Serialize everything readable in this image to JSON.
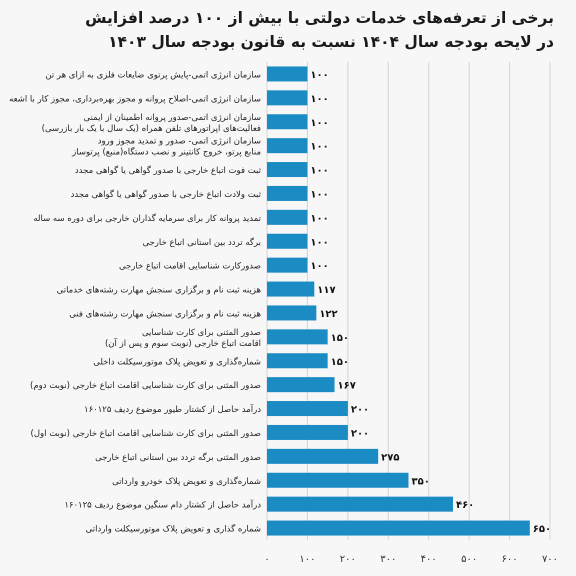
{
  "chart_data": {
    "type": "bar",
    "orientation": "horizontal",
    "title": "برخی از تعرفه‌های خدمات دولتی با بیش از ۱۰۰ درصد افزایش",
    "subtitle": "در لایحه بودجه سال ۱۴۰۴ نسبت به قانون بودجه سال ۱۴۰۳",
    "xlabel": "",
    "ylabel": "",
    "xlim": [
      0,
      700
    ],
    "grid": "vertical",
    "color": "#1b8bc4",
    "tick_values": [
      0,
      100,
      200,
      300,
      400,
      500,
      600,
      700
    ],
    "tick_labels": [
      "۰",
      "۱۰۰",
      "۲۰۰",
      "۳۰۰",
      "۴۰۰",
      "۵۰۰",
      "۶۰۰",
      "۷۰۰"
    ],
    "categories": [
      [
        "سازمان انرژی اتمی-پایش پرتوی ضایعات فلزی به ازای هر تن"
      ],
      [
        "سازمان انرژی اتمی-اصلاح پروانه و مجوز بهره‌برداری، مجوز کار با اشعه"
      ],
      [
        "سازمان انرژی اتمی-صدور پروانه اطمینان از ایمنی",
        "فعالیت‌های اپراتورهای تلفن همراه (یک سال با یک بار بازرسی)"
      ],
      [
        "سازمان انرژی اتمی- صدور و تمدید مجوز ورود",
        "منابع پرتو، خروج کانتینر و نصب دستگاه(منبع) پرتوساز"
      ],
      [
        "ثبت فوت اتباع خارجی با صدور گواهی یا گواهی مجدد"
      ],
      [
        "ثبت ولادت اتباع خارجی با صدور گواهی یا گواهی مجدد"
      ],
      [
        "تمدید پروانه کار برای سرمایه گذاران خارجی برای دوره سه ساله"
      ],
      [
        "برگه تردد بین استانی اتباع خارجی"
      ],
      [
        "صدورکارت شناسایی اقامت اتباع خارجی"
      ],
      [
        "هزینه ثبت نام و برگزاری سنجش مهارت رشته‌های خدماتی"
      ],
      [
        "هزینه ثبت نام و برگزاری سنجش مهارت رشته‌های فنی"
      ],
      [
        "صدور المثنی برای کارت شناسایی",
        "اقامت اتباع خارجی (نوبت سوم و پس از آن)"
      ],
      [
        "شماره‌گذاری و تعویض پلاک موتورسیکلت داخلی"
      ],
      [
        "صدور المثنی برای کارت شناسایی اقامت اتباع خارجی (نوبت دوم)"
      ],
      [
        "درآمد حاصل از کشتار طیور موضوع ردیف ۱۶۰۱۲۵"
      ],
      [
        "صدور المثنی برای کارت شناسایی اقامت اتباع خارجی (نوبت اول)"
      ],
      [
        "صدور المثنی برگه تردد بین استانی اتباع خارجی"
      ],
      [
        "شماره‌گذاری و تعویض پلاک خودرو وارداتی"
      ],
      [
        "درآمد حاصل از کشتار دام سنگین موضوع ردیف ۱۶۰۱۲۵"
      ],
      [
        "شماره گذاری و تعویض پلاک موتورسیکلت وارداتی"
      ]
    ],
    "values": [
      100,
      100,
      100,
      100,
      100,
      100,
      100,
      100,
      100,
      117,
      122,
      150,
      150,
      167,
      200,
      200,
      275,
      350,
      460,
      650
    ],
    "value_labels": [
      "۱۰۰",
      "۱۰۰",
      "۱۰۰",
      "۱۰۰",
      "۱۰۰",
      "۱۰۰",
      "۱۰۰",
      "۱۰۰",
      "۱۰۰",
      "۱۱۷",
      "۱۲۲",
      "۱۵۰",
      "۱۵۰",
      "۱۶۷",
      "۲۰۰",
      "۲۰۰",
      "۲۷۵",
      "۳۵۰",
      "۴۶۰",
      "۶۵۰"
    ]
  }
}
